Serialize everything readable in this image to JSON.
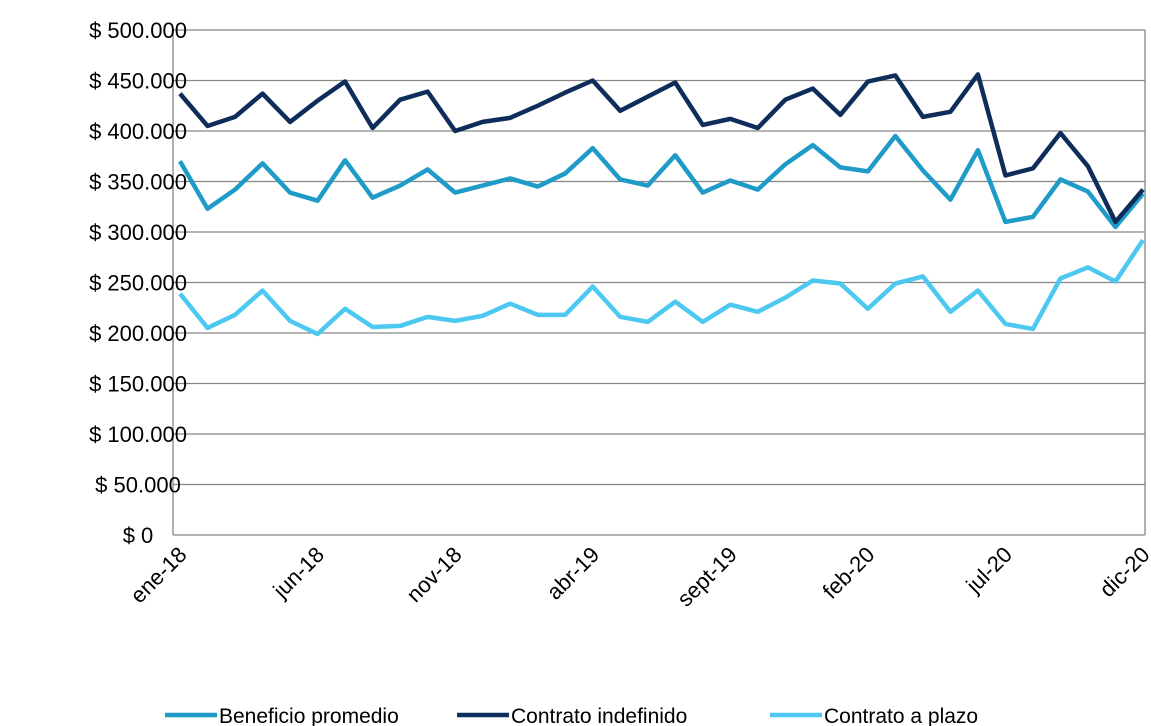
{
  "chart_data": {
    "type": "line",
    "categories": [
      "ene-18",
      null,
      null,
      null,
      null,
      "jun-18",
      null,
      null,
      null,
      null,
      "nov-18",
      null,
      null,
      null,
      null,
      "abr-19",
      null,
      null,
      null,
      null,
      "sept-19",
      null,
      null,
      null,
      null,
      "feb-20",
      null,
      null,
      null,
      null,
      "jul-20",
      null,
      null,
      null,
      null,
      "dic-20"
    ],
    "series": [
      {
        "name": "Beneficio promedio",
        "color": "#1f9bc8",
        "values": [
          370000,
          323000,
          342000,
          368000,
          339000,
          331000,
          371000,
          334000,
          346000,
          362000,
          339000,
          346000,
          353000,
          345000,
          358000,
          383000,
          352000,
          346000,
          376000,
          339000,
          351000,
          342000,
          367000,
          386000,
          364000,
          360000,
          395000,
          361000,
          332000,
          381000,
          310000,
          315000,
          352000,
          340000,
          305000,
          338000
        ]
      },
      {
        "name": "Contrato indefinido",
        "color": "#0e2d5a",
        "values": [
          437000,
          405000,
          414000,
          437000,
          409000,
          430000,
          449000,
          403000,
          431000,
          439000,
          400000,
          409000,
          413000,
          425000,
          438000,
          450000,
          420000,
          434000,
          448000,
          406000,
          412000,
          403000,
          431000,
          442000,
          416000,
          449000,
          455000,
          414000,
          419000,
          456000,
          356000,
          363000,
          398000,
          365000,
          310000,
          342000
        ]
      },
      {
        "name": "Contrato a plazo",
        "color": "#4cc8f1",
        "values": [
          239000,
          205000,
          218000,
          242000,
          212000,
          199000,
          224000,
          206000,
          207000,
          216000,
          212000,
          217000,
          229000,
          218000,
          218000,
          246000,
          216000,
          211000,
          231000,
          211000,
          228000,
          221000,
          235000,
          252000,
          249000,
          224000,
          249000,
          256000,
          221000,
          242000,
          209000,
          204000,
          254000,
          265000,
          251000,
          292000
        ]
      }
    ],
    "ylim": [
      0,
      500000
    ],
    "yticks": [
      {
        "value": 0,
        "label": "$ 0"
      },
      {
        "value": 50000,
        "label": "$ 50.000"
      },
      {
        "value": 100000,
        "label": "$ 100.000"
      },
      {
        "value": 150000,
        "label": "$ 150.000"
      },
      {
        "value": 200000,
        "label": "$ 200.000"
      },
      {
        "value": 250000,
        "label": "$ 250.000"
      },
      {
        "value": 300000,
        "label": "$ 300.000"
      },
      {
        "value": 350000,
        "label": "$ 350.000"
      },
      {
        "value": 400000,
        "label": "$ 400.000"
      },
      {
        "value": 450000,
        "label": "$ 450.000"
      },
      {
        "value": 500000,
        "label": "$ 500.000"
      }
    ],
    "grid": true,
    "legend": "bottom"
  }
}
